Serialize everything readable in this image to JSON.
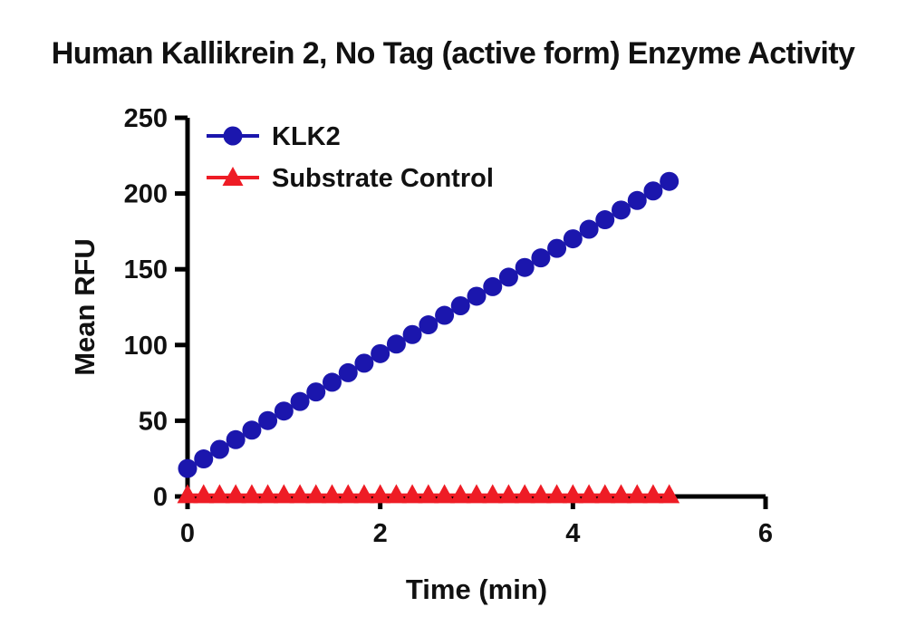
{
  "figure": {
    "background": "#ffffff",
    "text_color": "#111111"
  },
  "chart_data": {
    "type": "line",
    "title": "Human Kallikrein 2, No Tag (active form) Enzyme Activity",
    "xlabel": "Time (min)",
    "ylabel": "Mean RFU",
    "xlim": [
      0,
      6
    ],
    "ylim": [
      0,
      250
    ],
    "xticks": [
      0,
      2,
      4,
      6
    ],
    "yticks": [
      0,
      50,
      100,
      150,
      200,
      250
    ],
    "grid": false,
    "legend_position": "top-left-inside",
    "axis_color": "#000000",
    "x": [
      0,
      0.167,
      0.333,
      0.5,
      0.667,
      0.833,
      1,
      1.167,
      1.333,
      1.5,
      1.667,
      1.833,
      2,
      2.167,
      2.333,
      2.5,
      2.667,
      2.833,
      3,
      3.167,
      3.333,
      3.5,
      3.667,
      3.833,
      4,
      4.167,
      4.333,
      4.5,
      4.667,
      4.833,
      5
    ],
    "series": [
      {
        "name": "KLK2",
        "color": "#1b16ad",
        "marker": "circle",
        "values": [
          18.5,
          24.8,
          31.1,
          37.5,
          43.8,
          50.1,
          56.4,
          62.7,
          69.0,
          75.4,
          81.7,
          88.0,
          94.3,
          100.6,
          106.9,
          113.3,
          119.6,
          125.9,
          132.2,
          138.5,
          144.8,
          151.2,
          157.5,
          163.8,
          170.1,
          176.4,
          182.7,
          189.1,
          195.4,
          201.7,
          208.0
        ]
      },
      {
        "name": "Substrate Control",
        "color": "#ee1c25",
        "marker": "triangle",
        "values": [
          1,
          1,
          1,
          1,
          1,
          1,
          1,
          1,
          1,
          1,
          1,
          1,
          1,
          1,
          1,
          1,
          1,
          1,
          1,
          1,
          1,
          1,
          1,
          1,
          1,
          1,
          1,
          1,
          1,
          1,
          1
        ]
      }
    ]
  }
}
